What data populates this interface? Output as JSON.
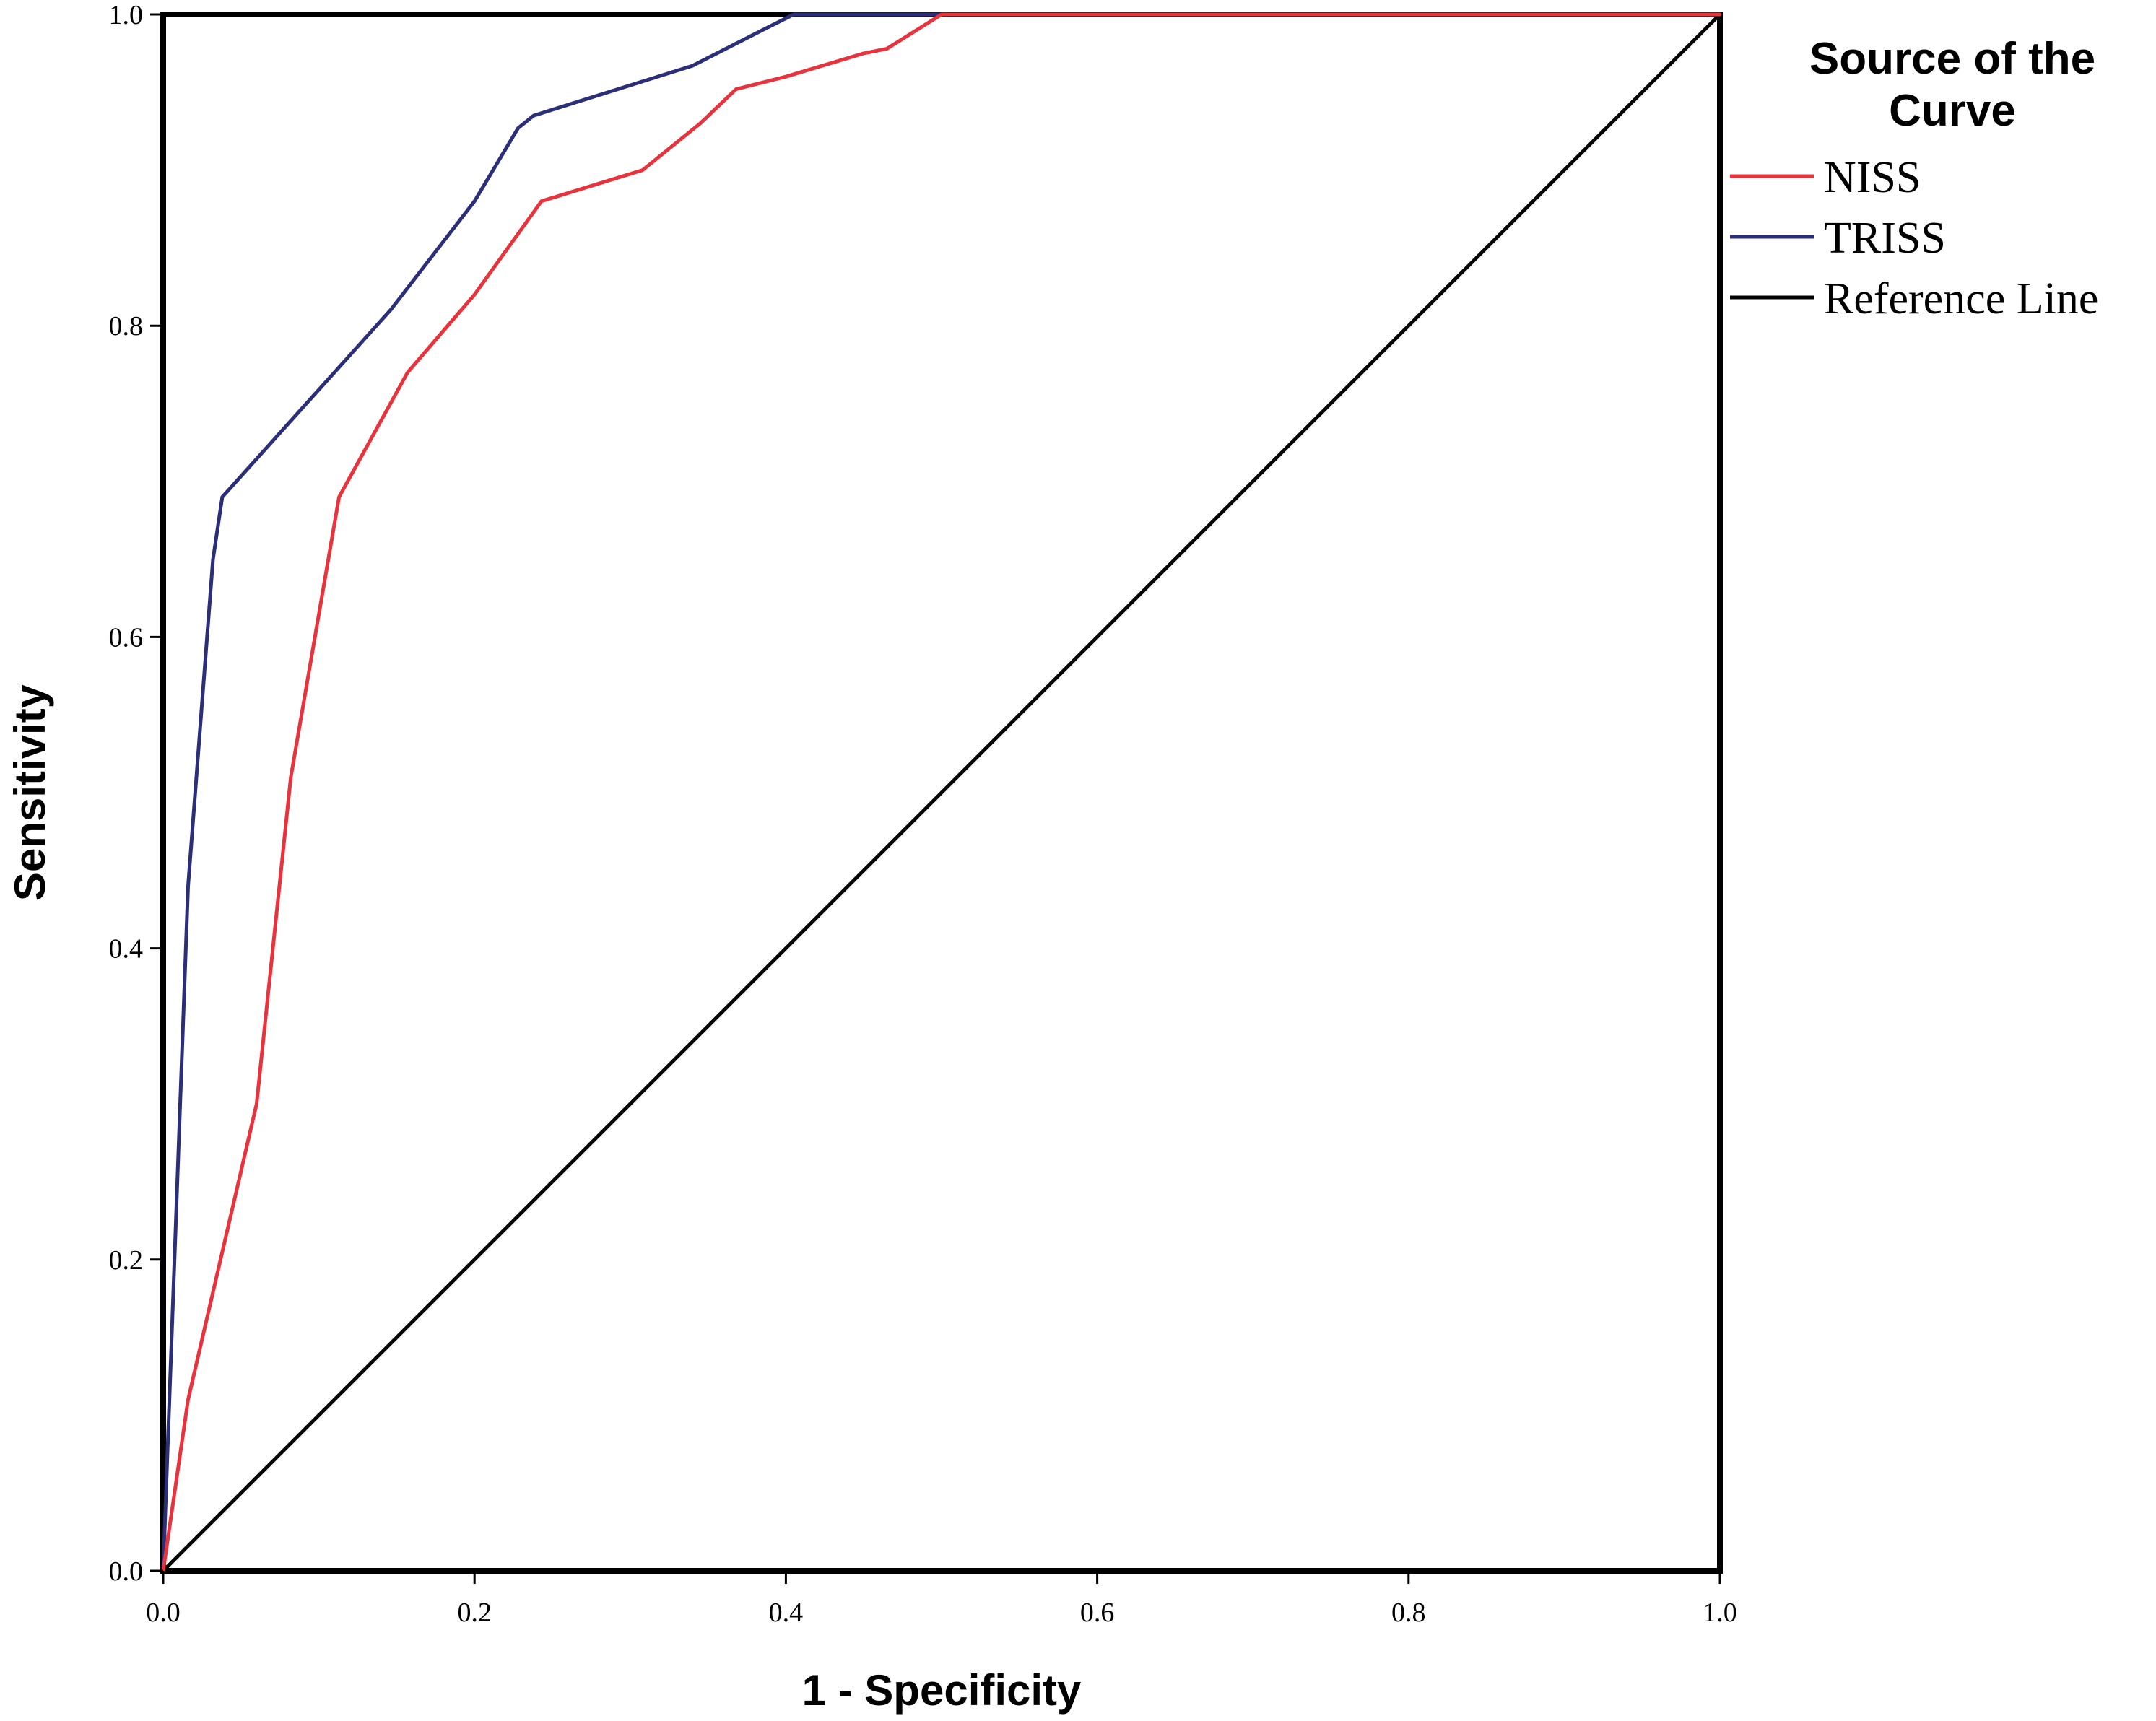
{
  "chart_data": {
    "type": "line",
    "title": "",
    "xlabel": "1 - Specificity",
    "ylabel": "Sensitivity",
    "xlim": [
      0,
      1
    ],
    "ylim": [
      0,
      1
    ],
    "x_ticks": [
      "0.0",
      "0.2",
      "0.4",
      "0.6",
      "0.8",
      "1.0"
    ],
    "y_ticks": [
      "0.0",
      "0.2",
      "0.4",
      "0.6",
      "0.8",
      "1.0"
    ],
    "grid": false,
    "legend": {
      "title": "Source of the Curve",
      "title_lines": [
        "Source of the",
        "Curve"
      ],
      "placement": "top-right, outside plot"
    },
    "series": [
      {
        "name": "NISS",
        "color": "#e8323c",
        "points": [
          [
            0.0,
            0.0
          ],
          [
            0.016,
            0.11
          ],
          [
            0.06,
            0.3
          ],
          [
            0.082,
            0.51
          ],
          [
            0.113,
            0.69
          ],
          [
            0.157,
            0.77
          ],
          [
            0.2,
            0.82
          ],
          [
            0.243,
            0.88
          ],
          [
            0.308,
            0.9
          ],
          [
            0.345,
            0.93
          ],
          [
            0.368,
            0.952
          ],
          [
            0.4,
            0.96
          ],
          [
            0.45,
            0.975
          ],
          [
            0.465,
            0.978
          ],
          [
            0.5,
            1.0
          ],
          [
            0.57,
            1.0
          ],
          [
            0.59,
            1.0
          ],
          [
            1.0,
            1.0
          ]
        ]
      },
      {
        "name": "TRISS",
        "color": "#2b2f7a",
        "points": [
          [
            0.0,
            0.0
          ],
          [
            0.016,
            0.44
          ],
          [
            0.032,
            0.65
          ],
          [
            0.038,
            0.69
          ],
          [
            0.146,
            0.81
          ],
          [
            0.2,
            0.88
          ],
          [
            0.228,
            0.927
          ],
          [
            0.238,
            0.935
          ],
          [
            0.34,
            0.967
          ],
          [
            0.385,
            0.99
          ],
          [
            0.405,
            1.0
          ],
          [
            0.44,
            1.0
          ],
          [
            1.0,
            1.0
          ]
        ]
      },
      {
        "name": "Reference Line",
        "color": "#000000",
        "points": [
          [
            0.0,
            0.0
          ],
          [
            1.0,
            1.0
          ]
        ]
      }
    ]
  }
}
